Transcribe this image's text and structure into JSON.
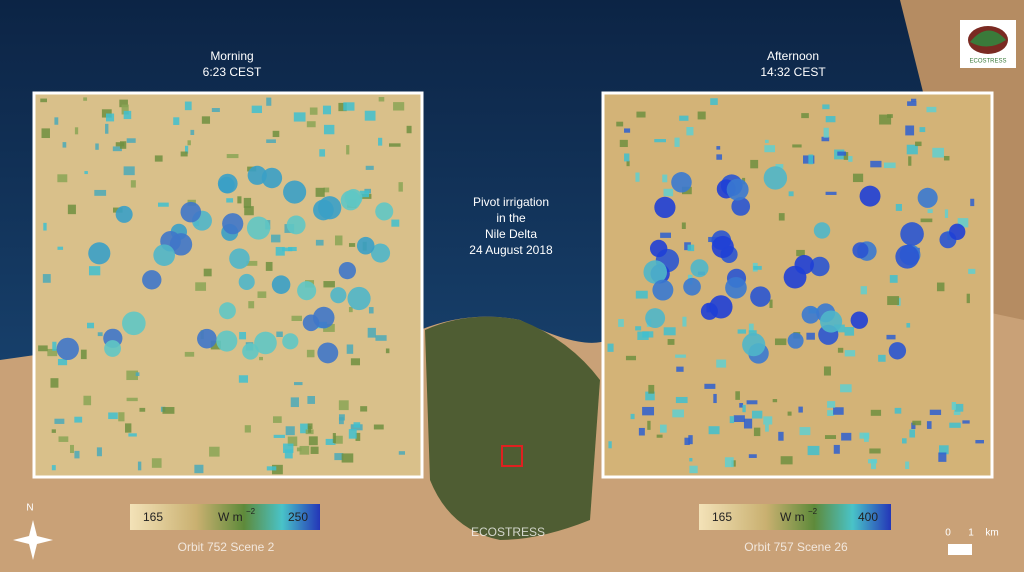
{
  "left_panel": {
    "title": "Morning",
    "time": "6:23 CEST",
    "colorbar": {
      "min": 165,
      "unit": {
        "base": "W m",
        "exponent": "−2"
      },
      "max": 250
    },
    "orbit": "Orbit 752 Scene 2"
  },
  "right_panel": {
    "title": "Afternoon",
    "time": "14:32 CEST",
    "colorbar": {
      "min": 165,
      "unit": {
        "base": "W m",
        "exponent": "−2"
      },
      "max": 400
    },
    "orbit": "Orbit 757 Scene 26"
  },
  "center_caption": [
    "Pivot irrigation",
    "in the",
    "Nile Delta",
    "24 August 2018"
  ],
  "instrument": "ECOSTRESS",
  "compass": "N",
  "scale_bar": {
    "start": "0",
    "end": "1",
    "unit": "km"
  },
  "logo": "ECOSTRESS"
}
